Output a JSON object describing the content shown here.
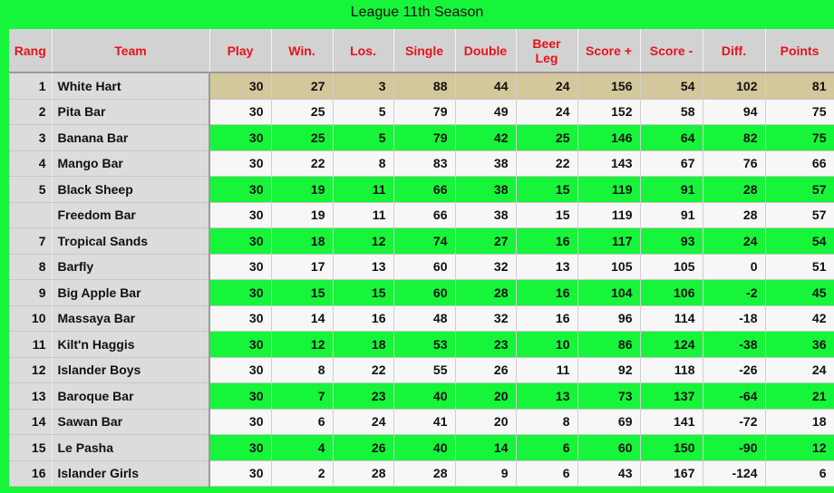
{
  "title": "League 11th Season",
  "colors": {
    "positive_row": "#17f53a",
    "leader_row": "#d3c79c",
    "negative_value": "#ff1010",
    "header_text": "#e8121c"
  },
  "columns": [
    "Rang",
    "Team",
    "Play",
    "Win.",
    "Los.",
    "Single",
    "Double",
    "Beer Leg",
    "Score +",
    "Score -",
    "Diff.",
    "Points"
  ],
  "rows": [
    {
      "rank": "1",
      "team": "White Hart",
      "play": 30,
      "win": 27,
      "los": 3,
      "single": 88,
      "double": 44,
      "beer_leg": 24,
      "score_plus": 156,
      "score_minus": 54,
      "diff": 102,
      "points": 81
    },
    {
      "rank": "2",
      "team": "Pita Bar",
      "play": 30,
      "win": 25,
      "los": 5,
      "single": 79,
      "double": 49,
      "beer_leg": 24,
      "score_plus": 152,
      "score_minus": 58,
      "diff": 94,
      "points": 75
    },
    {
      "rank": "3",
      "team": "Banana Bar",
      "play": 30,
      "win": 25,
      "los": 5,
      "single": 79,
      "double": 42,
      "beer_leg": 25,
      "score_plus": 146,
      "score_minus": 64,
      "diff": 82,
      "points": 75
    },
    {
      "rank": "4",
      "team": "Mango Bar",
      "play": 30,
      "win": 22,
      "los": 8,
      "single": 83,
      "double": 38,
      "beer_leg": 22,
      "score_plus": 143,
      "score_minus": 67,
      "diff": 76,
      "points": 66
    },
    {
      "rank": "5",
      "team": "Black Sheep",
      "play": 30,
      "win": 19,
      "los": 11,
      "single": 66,
      "double": 38,
      "beer_leg": 15,
      "score_plus": 119,
      "score_minus": 91,
      "diff": 28,
      "points": 57
    },
    {
      "rank": "",
      "team": "Freedom Bar",
      "play": 30,
      "win": 19,
      "los": 11,
      "single": 66,
      "double": 38,
      "beer_leg": 15,
      "score_plus": 119,
      "score_minus": 91,
      "diff": 28,
      "points": 57
    },
    {
      "rank": "7",
      "team": "Tropical Sands",
      "play": 30,
      "win": 18,
      "los": 12,
      "single": 74,
      "double": 27,
      "beer_leg": 16,
      "score_plus": 117,
      "score_minus": 93,
      "diff": 24,
      "points": 54
    },
    {
      "rank": "8",
      "team": "Barfly",
      "play": 30,
      "win": 17,
      "los": 13,
      "single": 60,
      "double": 32,
      "beer_leg": 13,
      "score_plus": 105,
      "score_minus": 105,
      "diff": 0,
      "points": 51
    },
    {
      "rank": "9",
      "team": "Big Apple Bar",
      "play": 30,
      "win": 15,
      "los": 15,
      "single": 60,
      "double": 28,
      "beer_leg": 16,
      "score_plus": 104,
      "score_minus": 106,
      "diff": -2,
      "points": 45
    },
    {
      "rank": "10",
      "team": "Massaya Bar",
      "play": 30,
      "win": 14,
      "los": 16,
      "single": 48,
      "double": 32,
      "beer_leg": 16,
      "score_plus": 96,
      "score_minus": 114,
      "diff": -18,
      "points": 42
    },
    {
      "rank": "11",
      "team": "Kilt'n Haggis",
      "play": 30,
      "win": 12,
      "los": 18,
      "single": 53,
      "double": 23,
      "beer_leg": 10,
      "score_plus": 86,
      "score_minus": 124,
      "diff": -38,
      "points": 36
    },
    {
      "rank": "12",
      "team": "Islander Boys",
      "play": 30,
      "win": 8,
      "los": 22,
      "single": 55,
      "double": 26,
      "beer_leg": 11,
      "score_plus": 92,
      "score_minus": 118,
      "diff": -26,
      "points": 24
    },
    {
      "rank": "13",
      "team": "Baroque Bar",
      "play": 30,
      "win": 7,
      "los": 23,
      "single": 40,
      "double": 20,
      "beer_leg": 13,
      "score_plus": 73,
      "score_minus": 137,
      "diff": -64,
      "points": 21
    },
    {
      "rank": "14",
      "team": "Sawan Bar",
      "play": 30,
      "win": 6,
      "los": 24,
      "single": 41,
      "double": 20,
      "beer_leg": 8,
      "score_plus": 69,
      "score_minus": 141,
      "diff": -72,
      "points": 18
    },
    {
      "rank": "15",
      "team": "Le Pasha",
      "play": 30,
      "win": 4,
      "los": 26,
      "single": 40,
      "double": 14,
      "beer_leg": 6,
      "score_plus": 60,
      "score_minus": 150,
      "diff": -90,
      "points": 12
    },
    {
      "rank": "16",
      "team": "Islander Girls",
      "play": 30,
      "win": 2,
      "los": 28,
      "single": 28,
      "double": 9,
      "beer_leg": 6,
      "score_plus": 43,
      "score_minus": 167,
      "diff": -124,
      "points": 6
    }
  ]
}
